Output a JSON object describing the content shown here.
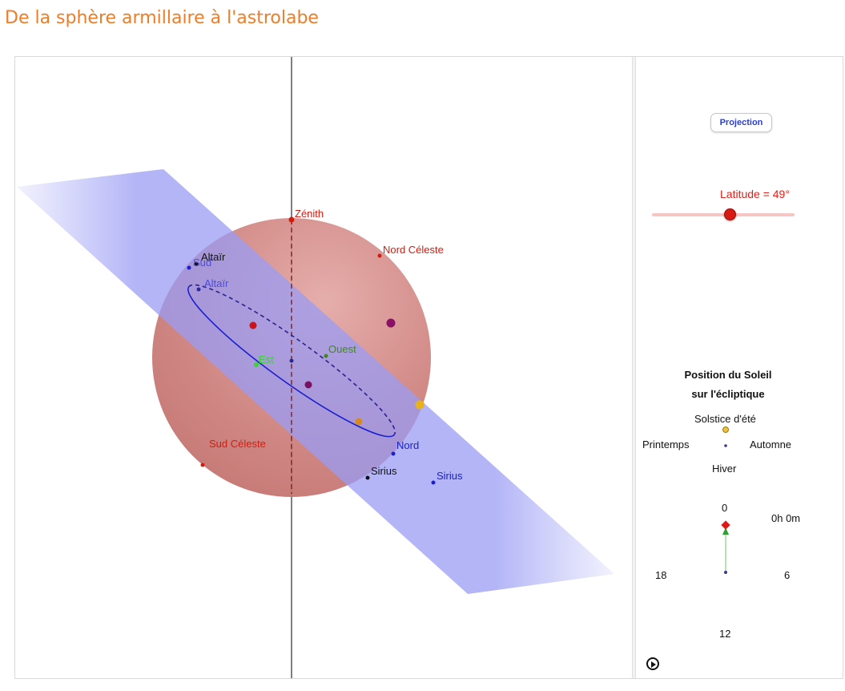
{
  "page": {
    "title": "De la sphère armillaire à l'astrolabe"
  },
  "view3d": {
    "labels": {
      "zenith": "Zénith",
      "nord_celeste": "Nord Céleste",
      "sud_celeste": "Sud Céleste",
      "altair_black": "Altaïr",
      "sud": "Sud",
      "altair_blue": "Altaïr",
      "est": "Est",
      "ouest": "Ouest",
      "nord": "Nord",
      "sirius_black": "Sirius",
      "sirius_blue": "Sirius"
    },
    "colors": {
      "sphere": "#c56b67",
      "plane": "#8f92f2",
      "horizon": "#1a1fcf",
      "points_red": "#d11c10"
    }
  },
  "panel": {
    "projection_button": "Projection",
    "latitude": {
      "label": "Latitude = 49°",
      "value": 49
    },
    "sun_position": {
      "title_line1": "Position du Soleil",
      "title_line2": "sur l'écliptique",
      "solstice_ete": "Solstice d'été",
      "printemps": "Printemps",
      "automne": "Automne",
      "hiver": "Hiver"
    },
    "clock": {
      "time": "0h 0m",
      "tick_0": "0",
      "tick_6": "6",
      "tick_12": "12",
      "tick_18": "18"
    }
  }
}
